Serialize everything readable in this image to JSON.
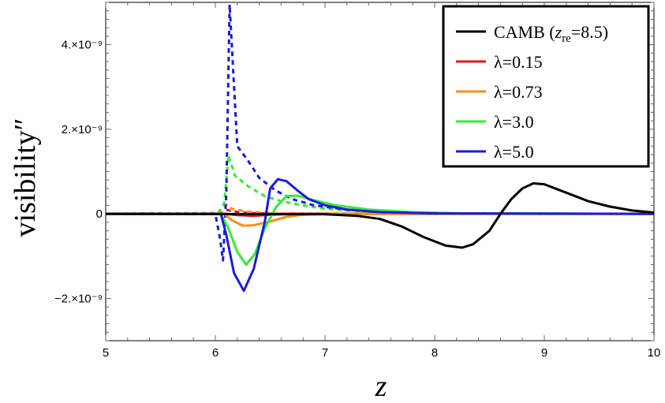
{
  "chart_data": {
    "type": "line",
    "xlabel": "z",
    "ylabel": "visibility″",
    "xlim": [
      5,
      10
    ],
    "ylim": [
      -3e-09,
      5e-09
    ],
    "x_ticks": [
      5,
      6,
      7,
      8,
      9,
      10
    ],
    "x_tick_labels": [
      "5",
      "6",
      "7",
      "8",
      "9",
      "10"
    ],
    "y_ticks": [
      -2e-09,
      0,
      2e-09,
      4e-09
    ],
    "y_tick_labels": [
      "−2.×10⁻⁹",
      "0",
      "2.×10⁻⁹",
      "4.×10⁻⁹"
    ],
    "grid": false,
    "legend_position": "top-right",
    "series": [
      {
        "name": "CAMB (z_re=8.5)",
        "label_main": "CAMB (",
        "label_var": "z",
        "label_sub": "re",
        "label_tail": "=8.5)",
        "color": "#000000",
        "style": "solid",
        "points": [
          [
            5.0,
            0.0
          ],
          [
            7.0,
            -1e-11
          ],
          [
            7.3,
            -5e-11
          ],
          [
            7.5,
            -1.2e-10
          ],
          [
            7.7,
            -3e-10
          ],
          [
            7.9,
            -5.5e-10
          ],
          [
            8.1,
            -7.5e-10
          ],
          [
            8.25,
            -8e-10
          ],
          [
            8.35,
            -7.2e-10
          ],
          [
            8.5,
            -4e-10
          ],
          [
            8.6,
            0.0
          ],
          [
            8.7,
            3.5e-10
          ],
          [
            8.8,
            6e-10
          ],
          [
            8.9,
            7.2e-10
          ],
          [
            9.0,
            7e-10
          ],
          [
            9.2,
            5e-10
          ],
          [
            9.4,
            3e-10
          ],
          [
            9.6,
            1.7e-10
          ],
          [
            9.8,
            8e-11
          ],
          [
            10.0,
            3e-11
          ]
        ]
      },
      {
        "name": "λ=0.15",
        "color": "#e31a1c",
        "style": "solid",
        "points": [
          [
            5.0,
            0.0
          ],
          [
            6.1,
            0.0
          ],
          [
            6.2,
            -3e-11
          ],
          [
            6.35,
            -5e-11
          ],
          [
            6.5,
            -2e-11
          ],
          [
            6.7,
            0.0
          ],
          [
            10.0,
            0.0
          ]
        ]
      },
      {
        "name": "λ=0.15 (dashed)",
        "color": "#e31a1c",
        "style": "dashed",
        "points": [
          [
            5.0,
            0.0
          ],
          [
            6.05,
            2e-11
          ],
          [
            6.1,
            1e-10
          ],
          [
            6.15,
            6e-11
          ],
          [
            6.3,
            2e-11
          ],
          [
            6.6,
            0.0
          ],
          [
            10.0,
            0.0
          ]
        ]
      },
      {
        "name": "λ=0.73",
        "color": "#ff8c1a",
        "style": "solid",
        "points": [
          [
            5.0,
            0.0
          ],
          [
            6.08,
            0.0
          ],
          [
            6.15,
            -1.5e-10
          ],
          [
            6.25,
            -2.8e-10
          ],
          [
            6.35,
            -2.7e-10
          ],
          [
            6.5,
            -1.8e-10
          ],
          [
            6.65,
            -7e-11
          ],
          [
            6.8,
            -2e-11
          ],
          [
            7.0,
            0.0
          ],
          [
            10.0,
            0.0
          ]
        ]
      },
      {
        "name": "λ=0.73 (dashed)",
        "color": "#ff8c1a",
        "style": "dashed",
        "points": [
          [
            5.0,
            0.0
          ],
          [
            6.05,
            2e-11
          ],
          [
            6.1,
            2.2e-10
          ],
          [
            6.15,
            1.2e-10
          ],
          [
            6.3,
            5e-11
          ],
          [
            6.6,
            1e-11
          ],
          [
            10.0,
            0.0
          ]
        ]
      },
      {
        "name": "λ=3.0",
        "color": "#33ee33",
        "style": "solid",
        "points": [
          [
            5.0,
            0.0
          ],
          [
            6.05,
            0.0
          ],
          [
            6.12,
            -3.5e-10
          ],
          [
            6.2,
            -9e-10
          ],
          [
            6.28,
            -1.2e-09
          ],
          [
            6.36,
            -9.5e-10
          ],
          [
            6.45,
            -3.5e-10
          ],
          [
            6.55,
            1.5e-10
          ],
          [
            6.65,
            4.2e-10
          ],
          [
            6.75,
            4.3e-10
          ],
          [
            6.9,
            3.2e-10
          ],
          [
            7.1,
            2e-10
          ],
          [
            7.4,
            1e-10
          ],
          [
            7.8,
            4e-11
          ],
          [
            8.3,
            1e-11
          ],
          [
            10.0,
            0.0
          ]
        ]
      },
      {
        "name": "λ=3.0 (dashed)",
        "color": "#33ee33",
        "style": "dashed",
        "points": [
          [
            5.0,
            0.0
          ],
          [
            6.02,
            0.0
          ],
          [
            6.08,
            2.5e-10
          ],
          [
            6.12,
            1.38e-09
          ],
          [
            6.18,
            9e-10
          ],
          [
            6.3,
            6.5e-10
          ],
          [
            6.45,
            4.2e-10
          ],
          [
            6.6,
            3e-10
          ],
          [
            6.8,
            2e-10
          ],
          [
            7.0,
            1.2e-10
          ],
          [
            7.3,
            6e-11
          ],
          [
            7.7,
            2e-11
          ],
          [
            8.2,
            1e-11
          ],
          [
            10.0,
            0.0
          ]
        ]
      },
      {
        "name": "λ=5.0",
        "color": "#1a1ae6",
        "style": "solid",
        "points": [
          [
            5.0,
            0.0
          ],
          [
            6.05,
            0.0
          ],
          [
            6.1,
            -5e-10
          ],
          [
            6.17,
            -1.4e-09
          ],
          [
            6.26,
            -1.82e-09
          ],
          [
            6.35,
            -1.3e-09
          ],
          [
            6.45,
            -2e-10
          ],
          [
            6.5,
            6e-10
          ],
          [
            6.57,
            8.2e-10
          ],
          [
            6.65,
            7.7e-10
          ],
          [
            6.75,
            5.5e-10
          ],
          [
            6.85,
            3.5e-10
          ],
          [
            7.0,
            2e-10
          ],
          [
            7.2,
            1e-10
          ],
          [
            7.5,
            4e-11
          ],
          [
            8.0,
            1e-11
          ],
          [
            10.0,
            0.0
          ]
        ]
      },
      {
        "name": "λ=5.0 (dashed)",
        "color": "#1a1ae6",
        "style": "dashed",
        "points": [
          [
            5.0,
            0.0
          ],
          [
            6.0,
            0.0
          ],
          [
            6.04,
            -5.5e-10
          ],
          [
            6.07,
            -1.1e-09
          ],
          [
            6.1,
            5e-10
          ],
          [
            6.13,
            4.95e-09
          ],
          [
            6.2,
            1.6e-09
          ],
          [
            6.3,
            1.25e-09
          ],
          [
            6.4,
            8.5e-10
          ],
          [
            6.55,
            5.5e-10
          ],
          [
            6.7,
            3.5e-10
          ],
          [
            6.9,
            2e-10
          ],
          [
            7.2,
            1e-10
          ],
          [
            7.6,
            4e-11
          ],
          [
            8.2,
            1e-11
          ],
          [
            10.0,
            0.0
          ]
        ]
      }
    ],
    "legend": [
      {
        "series": 0,
        "label_main": "CAMB (",
        "label_var": "z",
        "label_sub": "re",
        "label_tail": "=8.5)",
        "color": "#000000"
      },
      {
        "series": 1,
        "label": "λ=0.15",
        "color": "#e31a1c"
      },
      {
        "series": 3,
        "label": "λ=0.73",
        "color": "#ff8c1a"
      },
      {
        "series": 5,
        "label": "λ=3.0",
        "color": "#33ee33"
      },
      {
        "series": 7,
        "label": "λ=5.0",
        "color": "#1a1ae6"
      }
    ]
  }
}
